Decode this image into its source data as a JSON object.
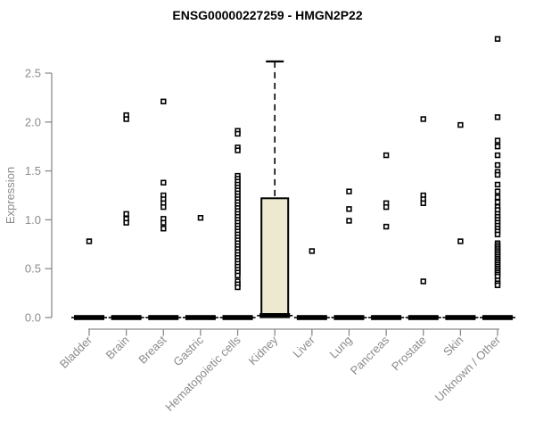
{
  "chart_data": {
    "type": "box",
    "title": "ENSG00000227259 - HMGN2P22",
    "ylabel": "Expression",
    "xlabel": "",
    "yticks": [
      0,
      0.5,
      1,
      1.5,
      2,
      2.5
    ],
    "ylim": [
      0,
      2.9
    ],
    "grid": false,
    "legend": "none",
    "colors": {
      "box_fill": "#ede8d0",
      "box_stroke": "#000000",
      "axis": "#8b8b8b",
      "tick_text": "#8b8b8b",
      "title_text": "#000000",
      "point_stroke": "#000000"
    },
    "categories": [
      "Bladder",
      "Brain",
      "Breast",
      "Gastric",
      "Hematopoietic cells",
      "Kidney",
      "Liver",
      "Lung",
      "Pancreas",
      "Prostate",
      "Skin",
      "Unknown / Other"
    ],
    "boxes": [
      {
        "category": "Bladder",
        "median": 0,
        "q1": 0,
        "q3": 0,
        "whisker_low": 0,
        "whisker_high": 0,
        "outliers": [
          0.78
        ]
      },
      {
        "category": "Brain",
        "median": 0,
        "q1": 0,
        "q3": 0,
        "whisker_low": 0,
        "whisker_high": 0,
        "outliers": [
          2.07,
          2.03,
          1.06,
          1.01,
          0.97
        ]
      },
      {
        "category": "Breast",
        "median": 0,
        "q1": 0,
        "q3": 0,
        "whisker_low": 0,
        "whisker_high": 0,
        "outliers": [
          2.21,
          1.38,
          1.25,
          1.21,
          1.17,
          1.13,
          1.01,
          0.97,
          0.91
        ]
      },
      {
        "category": "Gastric",
        "median": 0,
        "q1": 0,
        "q3": 0,
        "whisker_low": 0,
        "whisker_high": 0,
        "outliers": [
          1.02
        ]
      },
      {
        "category": "Hematopoietic cells",
        "median": 0,
        "q1": 0,
        "q3": 0,
        "whisker_low": 0,
        "whisker_high": 0,
        "outliers": [
          1.91,
          1.88,
          1.74,
          1.71,
          1.45,
          1.42,
          1.39,
          1.36,
          1.33,
          1.3,
          1.27,
          1.24,
          1.21,
          1.18,
          1.15,
          1.12,
          1.09,
          1.06,
          1.03,
          1.0,
          0.97,
          0.94,
          0.91,
          0.88,
          0.85,
          0.82,
          0.79,
          0.76,
          0.73,
          0.7,
          0.67,
          0.64,
          0.61,
          0.58,
          0.55,
          0.52,
          0.49,
          0.46,
          0.43,
          0.37,
          0.34,
          0.31
        ]
      },
      {
        "category": "Kidney",
        "median": 0.02,
        "q1": 0.03,
        "q3": 1.22,
        "whisker_low": 0,
        "whisker_high": 2.62,
        "outliers": []
      },
      {
        "category": "Liver",
        "median": 0,
        "q1": 0,
        "q3": 0,
        "whisker_low": 0,
        "whisker_high": 0,
        "outliers": [
          0.68
        ]
      },
      {
        "category": "Lung",
        "median": 0,
        "q1": 0,
        "q3": 0,
        "whisker_low": 0,
        "whisker_high": 0,
        "outliers": [
          1.29,
          1.11,
          0.99
        ]
      },
      {
        "category": "Pancreas",
        "median": 0,
        "q1": 0,
        "q3": 0,
        "whisker_low": 0,
        "whisker_high": 0,
        "outliers": [
          1.66,
          1.17,
          1.13,
          0.93
        ]
      },
      {
        "category": "Prostate",
        "median": 0,
        "q1": 0,
        "q3": 0,
        "whisker_low": 0,
        "whisker_high": 0,
        "outliers": [
          2.03,
          1.25,
          1.21,
          1.17,
          0.37
        ]
      },
      {
        "category": "Skin",
        "median": 0,
        "q1": 0,
        "q3": 0,
        "whisker_low": 0,
        "whisker_high": 0,
        "outliers": [
          1.97,
          0.78
        ]
      },
      {
        "category": "Unknown / Other",
        "median": 0,
        "q1": 0,
        "q3": 0,
        "whisker_low": 0,
        "whisker_high": 0,
        "outliers": [
          2.85,
          2.05,
          1.81,
          1.75,
          1.66,
          1.56,
          1.49,
          1.46,
          1.36,
          1.29,
          1.23,
          1.18,
          1.13,
          1.1,
          1.06,
          1.03,
          1.0,
          0.97,
          0.94,
          0.91,
          0.88,
          0.85,
          0.76,
          0.74,
          0.72,
          0.7,
          0.68,
          0.66,
          0.64,
          0.62,
          0.6,
          0.58,
          0.56,
          0.54,
          0.52,
          0.5,
          0.48,
          0.46,
          0.44,
          0.42,
          0.38,
          0.35,
          0.33
        ]
      }
    ]
  }
}
